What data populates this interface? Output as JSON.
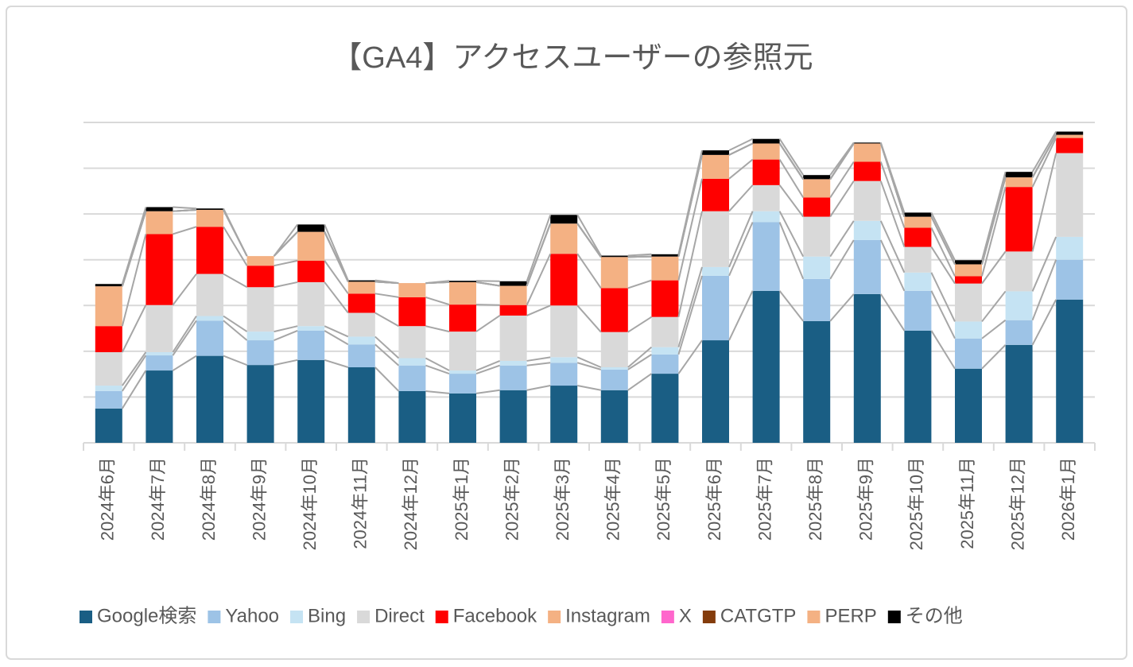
{
  "chart_data": {
    "type": "stacked_bar",
    "title": "【GA4】アクセスユーザーの参照元",
    "categories": [
      "2024年6月",
      "2024年7月",
      "2024年8月",
      "2024年9月",
      "2024年10月",
      "2024年11月",
      "2024年12月",
      "2025年1月",
      "2025年2月",
      "2025年3月",
      "2025年4月",
      "2025年5月",
      "2025年6月",
      "2025年7月",
      "2025年8月",
      "2025年9月",
      "2025年10月",
      "2025年11月",
      "2025年12月",
      "2026年1月"
    ],
    "series": [
      {
        "name": "Google検索",
        "color": "#1a5e84",
        "values": [
          0.75,
          1.58,
          1.9,
          1.7,
          1.81,
          1.65,
          1.13,
          1.08,
          1.15,
          1.25,
          1.15,
          1.51,
          2.24,
          3.32,
          2.66,
          3.25,
          2.45,
          1.62,
          2.14,
          3.13
        ]
      },
      {
        "name": "Yahoo",
        "color": "#9dc3e6",
        "values": [
          0.38,
          0.33,
          0.77,
          0.54,
          0.64,
          0.5,
          0.56,
          0.43,
          0.54,
          0.5,
          0.45,
          0.42,
          1.41,
          1.5,
          0.92,
          1.18,
          0.87,
          0.66,
          0.54,
          0.87
        ]
      },
      {
        "name": "Bing",
        "color": "#c5e3f3",
        "values": [
          0.12,
          0.07,
          0.1,
          0.19,
          0.1,
          0.17,
          0.16,
          0.07,
          0.1,
          0.12,
          0.05,
          0.16,
          0.19,
          0.24,
          0.49,
          0.42,
          0.4,
          0.37,
          0.63,
          0.5
        ]
      },
      {
        "name": "Direct",
        "color": "#d9d9d9",
        "values": [
          0.73,
          1.03,
          0.92,
          0.97,
          0.96,
          0.52,
          0.7,
          0.85,
          0.99,
          1.13,
          0.77,
          0.66,
          1.22,
          0.57,
          0.87,
          0.87,
          0.56,
          0.83,
          0.87,
          1.83
        ]
      },
      {
        "name": "Facebook",
        "color": "#ff0000",
        "values": [
          0.57,
          1.55,
          1.03,
          0.47,
          0.47,
          0.42,
          0.63,
          0.59,
          0.23,
          1.13,
          0.96,
          0.8,
          0.71,
          0.56,
          0.42,
          0.42,
          0.42,
          0.16,
          1.41,
          0.33
        ]
      },
      {
        "name": "Instagram",
        "color": "#f4b183",
        "values": [
          0.87,
          0.5,
          0.37,
          0.21,
          0.63,
          0.26,
          0.31,
          0.49,
          0.42,
          0.66,
          0.68,
          0.52,
          0.52,
          0.35,
          0.4,
          0.4,
          0.24,
          0.26,
          0.21,
          0.07
        ]
      },
      {
        "name": "X",
        "color": "#ff66cc",
        "values": [
          0,
          0,
          0,
          0,
          0,
          0,
          0,
          0,
          0,
          0,
          0,
          0,
          0,
          0,
          0,
          0,
          0,
          0,
          0,
          0
        ]
      },
      {
        "name": "CATGTP",
        "color": "#843c0c",
        "values": [
          0,
          0,
          0,
          0,
          0,
          0,
          0,
          0,
          0,
          0,
          0,
          0,
          0,
          0,
          0,
          0,
          0,
          0,
          0,
          0
        ]
      },
      {
        "name": "PERP",
        "color": "#f4b183",
        "values": [
          0,
          0,
          0,
          0,
          0,
          0,
          0,
          0,
          0,
          0,
          0,
          0,
          0,
          0,
          0,
          0,
          0,
          0,
          0,
          0
        ]
      },
      {
        "name": "その他",
        "color": "#000000",
        "values": [
          0.05,
          0.09,
          0.03,
          0,
          0.16,
          0.03,
          0,
          0.03,
          0.1,
          0.19,
          0.03,
          0.05,
          0.1,
          0.1,
          0.09,
          0.02,
          0.09,
          0.09,
          0.12,
          0.07
        ]
      }
    ],
    "ylim": [
      0,
      7
    ],
    "yticks": [
      0,
      1,
      2,
      3,
      4,
      5,
      6,
      7
    ],
    "grid": true,
    "legend": "bottom"
  }
}
